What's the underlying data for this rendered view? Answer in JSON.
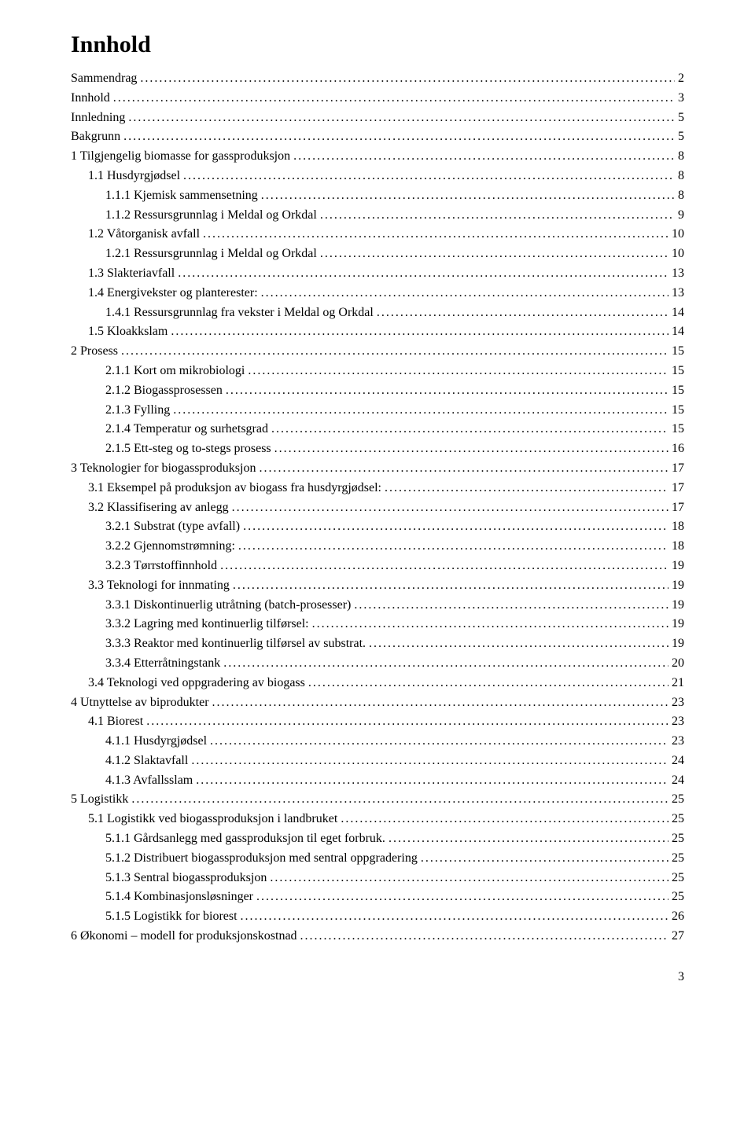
{
  "title": "Innhold",
  "page_number": "3",
  "colors": {
    "background": "#ffffff",
    "text": "#000000"
  },
  "typography": {
    "title_fontsize": 30,
    "body_fontsize": 16,
    "font_family": "Times New Roman"
  },
  "toc": [
    {
      "label": "Sammendrag",
      "page": "2",
      "indent": 0
    },
    {
      "label": "Innhold",
      "page": "3",
      "indent": 0
    },
    {
      "label": "Innledning",
      "page": "5",
      "indent": 0
    },
    {
      "label": "Bakgrunn",
      "page": "5",
      "indent": 0
    },
    {
      "label": "1 Tilgjengelig biomasse for gassproduksjon",
      "page": "8",
      "indent": 0
    },
    {
      "label": "1.1 Husdyrgjødsel",
      "page": "8",
      "indent": 1
    },
    {
      "label": "1.1.1 Kjemisk sammensetning",
      "page": "8",
      "indent": 2
    },
    {
      "label": "1.1.2 Ressursgrunnlag i Meldal og Orkdal",
      "page": "9",
      "indent": 2
    },
    {
      "label": "1.2 Våtorganisk avfall",
      "page": "10",
      "indent": 1
    },
    {
      "label": "1.2.1 Ressursgrunnlag i Meldal og Orkdal",
      "page": "10",
      "indent": 2
    },
    {
      "label": "1.3 Slakteriavfall",
      "page": "13",
      "indent": 1
    },
    {
      "label": "1.4 Energivekster og planterester:",
      "page": "13",
      "indent": 1
    },
    {
      "label": "1.4.1 Ressursgrunnlag fra vekster i Meldal og Orkdal",
      "page": "14",
      "indent": 2
    },
    {
      "label": "1.5 Kloakkslam",
      "page": "14",
      "indent": 1
    },
    {
      "label": "2 Prosess",
      "page": "15",
      "indent": 0
    },
    {
      "label": "2.1.1 Kort om mikrobiologi",
      "page": "15",
      "indent": 2
    },
    {
      "label": "2.1.2 Biogassprosessen",
      "page": "15",
      "indent": 2
    },
    {
      "label": "2.1.3 Fylling",
      "page": "15",
      "indent": 2
    },
    {
      "label": "2.1.4 Temperatur og surhetsgrad",
      "page": "15",
      "indent": 2
    },
    {
      "label": "2.1.5 Ett-steg og to-stegs prosess",
      "page": "16",
      "indent": 2
    },
    {
      "label": "3 Teknologier for biogassproduksjon",
      "page": "17",
      "indent": 0
    },
    {
      "label": "3.1 Eksempel på produksjon av biogass fra husdyrgjødsel:",
      "page": "17",
      "indent": 1
    },
    {
      "label": "3.2 Klassifisering av anlegg",
      "page": "17",
      "indent": 1
    },
    {
      "label": "3.2.1 Substrat (type avfall)",
      "page": "18",
      "indent": 2
    },
    {
      "label": "3.2.2 Gjennomstrømning:",
      "page": "18",
      "indent": 2
    },
    {
      "label": "3.2.3 Tørrstoffinnhold",
      "page": "19",
      "indent": 2
    },
    {
      "label": "3.3 Teknologi for innmating",
      "page": "19",
      "indent": 1
    },
    {
      "label": "3.3.1 Diskontinuerlig utråtning (batch-prosesser)",
      "page": "19",
      "indent": 2
    },
    {
      "label": "3.3.2 Lagring med kontinuerlig tilførsel:",
      "page": "19",
      "indent": 2
    },
    {
      "label": "3.3.3 Reaktor med kontinuerlig tilførsel av substrat.",
      "page": "19",
      "indent": 2
    },
    {
      "label": "3.3.4 Etterråtningstank",
      "page": "20",
      "indent": 2
    },
    {
      "label": "3.4 Teknologi ved oppgradering av biogass",
      "page": "21",
      "indent": 1
    },
    {
      "label": "4 Utnyttelse av biprodukter",
      "page": "23",
      "indent": 0
    },
    {
      "label": "4.1 Biorest",
      "page": "23",
      "indent": 1
    },
    {
      "label": "4.1.1 Husdyrgjødsel",
      "page": "23",
      "indent": 2
    },
    {
      "label": "4.1.2 Slaktavfall",
      "page": "24",
      "indent": 2
    },
    {
      "label": "4.1.3 Avfallsslam",
      "page": "24",
      "indent": 2
    },
    {
      "label": "5 Logistikk",
      "page": "25",
      "indent": 0
    },
    {
      "label": "5.1 Logistikk ved biogassproduksjon i landbruket",
      "page": "25",
      "indent": 1
    },
    {
      "label": "5.1.1 Gårdsanlegg med gassproduksjon til eget forbruk.",
      "page": "25",
      "indent": 2
    },
    {
      "label": "5.1.2 Distribuert biogassproduksjon med sentral oppgradering",
      "page": "25",
      "indent": 2
    },
    {
      "label": "5.1.3 Sentral biogassproduksjon",
      "page": "25",
      "indent": 2
    },
    {
      "label": "5.1.4 Kombinasjonsløsninger",
      "page": "25",
      "indent": 2
    },
    {
      "label": "5.1.5 Logistikk for biorest",
      "page": "26",
      "indent": 2
    },
    {
      "label": "6 Økonomi – modell for produksjonskostnad",
      "page": "27",
      "indent": 0
    }
  ]
}
